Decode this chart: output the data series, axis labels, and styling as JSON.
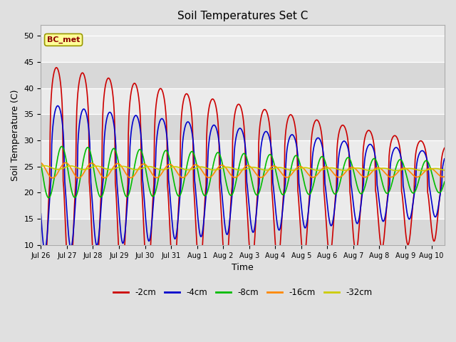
{
  "title": "Soil Temperatures Set C",
  "xlabel": "Time",
  "ylabel": "Soil Temperature (C)",
  "ylim": [
    10,
    52
  ],
  "yticks": [
    10,
    15,
    20,
    25,
    30,
    35,
    40,
    45,
    50
  ],
  "background_color": "#e0e0e0",
  "plot_bg_color": "#ebebeb",
  "annotation_text": "BC_met",
  "annotation_box_color": "#ffff99",
  "annotation_border_color": "#999900",
  "colors": {
    "-2cm": "#cc0000",
    "-4cm": "#0000cc",
    "-8cm": "#00bb00",
    "-16cm": "#ff8800",
    "-32cm": "#cccc00"
  },
  "legend_order": [
    "-2cm",
    "-4cm",
    "-8cm",
    "-16cm",
    "-32cm"
  ],
  "n_days": 15.5,
  "samples_per_day": 48,
  "x_tick_labels": [
    "Jul 26",
    "Jul 27",
    "Jul 28",
    "Jul 29",
    "Jul 30",
    "Jul 31",
    "Aug 1",
    "Aug 2",
    "Aug 3",
    "Aug 4",
    "Aug 5",
    "Aug 6",
    "Aug 7",
    "Aug 8",
    "Aug 9",
    "Aug 10"
  ],
  "x_tick_positions": [
    0,
    1,
    2,
    3,
    4,
    5,
    6,
    7,
    8,
    9,
    10,
    11,
    12,
    13,
    14,
    15
  ]
}
